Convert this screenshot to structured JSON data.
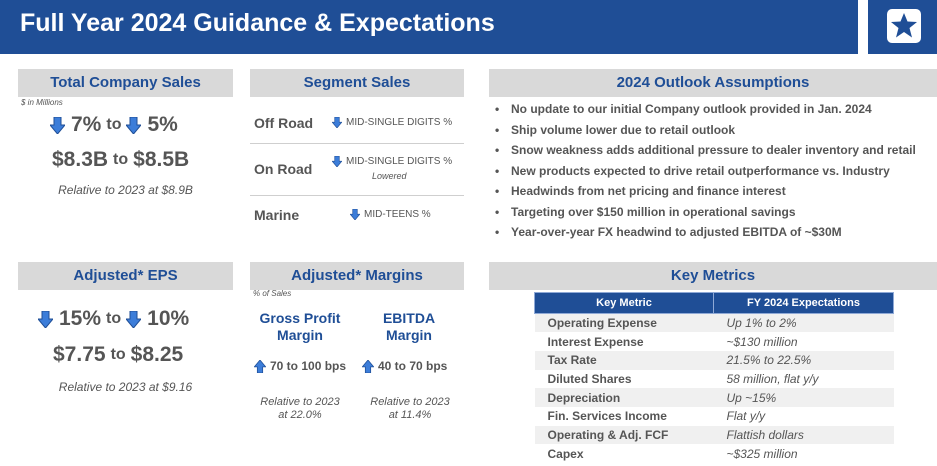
{
  "header": {
    "title": "Full Year 2024 Guidance & Expectations"
  },
  "colors": {
    "brand": "#1f4e96",
    "section_bg": "#d9d9d9",
    "text": "#555555",
    "arrow": "#3c7dd9"
  },
  "total_sales": {
    "title": "Total Company Sales",
    "units": "$ in Millions",
    "pct_low": "7%",
    "to1": "to",
    "pct_high": "5%",
    "dollar_low": "$8.3B",
    "to2": "to",
    "dollar_high": "$8.5B",
    "note": "Relative to 2023 at $8.9B"
  },
  "adjusted_eps": {
    "title": "Adjusted* EPS",
    "pct_low": "15%",
    "to1": "to",
    "pct_high": "10%",
    "value_low": "$7.75",
    "to2": "to",
    "value_high": "$8.25",
    "note": "Relative to 2023 at $9.16"
  },
  "segment_sales": {
    "title": "Segment Sales",
    "rows": [
      {
        "name": "Off Road",
        "value": "MID-SINGLE DIGITS %",
        "sub": ""
      },
      {
        "name": "On Road",
        "value": "MID-SINGLE DIGITS %",
        "sub": "Lowered"
      },
      {
        "name": "Marine",
        "value": "MID-TEENS %",
        "sub": ""
      }
    ]
  },
  "adjusted_margins": {
    "title": "Adjusted* Margins",
    "units": "% of Sales",
    "gross": {
      "head_line1": "Gross Profit",
      "head_line2": "Margin",
      "value": "70 to 100 bps",
      "note_line1": "Relative to 2023",
      "note_line2": "at 22.0%"
    },
    "ebitda": {
      "head_line1": "EBITDA",
      "head_line2": "Margin",
      "value": "40 to 70 bps",
      "note_line1": "Relative to 2023",
      "note_line2": "at 11.4%"
    }
  },
  "outlook": {
    "title": "2024 Outlook Assumptions",
    "bullets": [
      "No update to our initial Company outlook provided in Jan. 2024",
      "Ship volume lower due to retail outlook",
      "Snow weakness adds additional pressure to dealer inventory and retail",
      "New products expected to drive retail outperformance vs. Industry",
      "Headwinds from net pricing and finance interest",
      "Targeting over $150 million in operational savings",
      "Year-over-year FX headwind to adjusted EBITDA of ~$30M"
    ]
  },
  "key_metrics": {
    "title": "Key Metrics",
    "col1": "Key Metric",
    "col2": "FY 2024 Expectations",
    "rows": [
      {
        "k": "Operating Expense",
        "v": "Up 1% to 2%"
      },
      {
        "k": "Interest Expense",
        "v": "~$130 million"
      },
      {
        "k": "Tax Rate",
        "v": "21.5% to 22.5%"
      },
      {
        "k": "Diluted Shares",
        "v": "58 million, flat y/y"
      },
      {
        "k": "Depreciation",
        "v": "Up ~15%"
      },
      {
        "k": "Fin. Services Income",
        "v": "Flat y/y"
      },
      {
        "k": "Operating & Adj. FCF",
        "v": "Flattish dollars"
      },
      {
        "k": "Capex",
        "v": "~$325 million"
      }
    ]
  }
}
